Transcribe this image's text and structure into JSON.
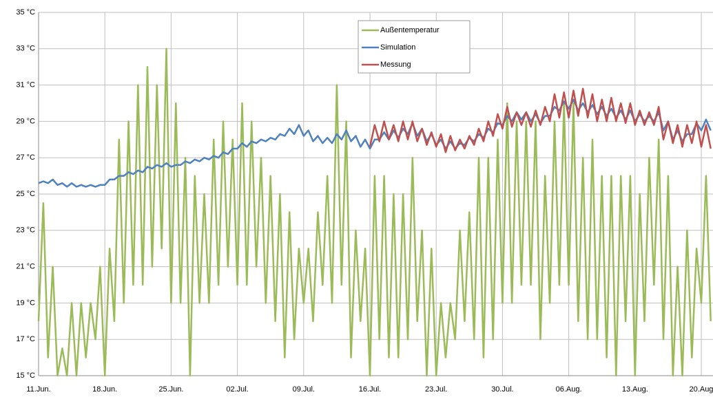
{
  "chart_data": {
    "type": "line",
    "categories": [
      "11.Jun.",
      null,
      null,
      null,
      null,
      null,
      null,
      null,
      null,
      null,
      null,
      null,
      null,
      null,
      "18.Jun.",
      null,
      null,
      null,
      null,
      null,
      null,
      null,
      null,
      null,
      null,
      null,
      null,
      null,
      "25.Jun.",
      null,
      null,
      null,
      null,
      null,
      null,
      null,
      null,
      null,
      null,
      null,
      null,
      null,
      "02.Jul.",
      null,
      null,
      null,
      null,
      null,
      null,
      null,
      null,
      null,
      null,
      null,
      null,
      null,
      "09.Jul.",
      null,
      null,
      null,
      null,
      null,
      null,
      null,
      null,
      null,
      null,
      null,
      null,
      null,
      "16.Jul.",
      null,
      null,
      null,
      null,
      null,
      null,
      null,
      null,
      null,
      null,
      null,
      null,
      null,
      "23.Jul.",
      null,
      null,
      null,
      null,
      null,
      null,
      null,
      null,
      null,
      null,
      null,
      null,
      null,
      "30.Jul.",
      null,
      null,
      null,
      null,
      null,
      null,
      null,
      null,
      null,
      null,
      null,
      null,
      null,
      "06.Aug.",
      null,
      null,
      null,
      null,
      null,
      null,
      null,
      null,
      null,
      null,
      null,
      null,
      null,
      "13.Aug.",
      null,
      null,
      null,
      null,
      null,
      null,
      null,
      null,
      null,
      null,
      null,
      null,
      null,
      "20.Aug",
      null,
      null
    ],
    "series": [
      {
        "name": "Außentemperatur",
        "color": "#9bbb59",
        "values": [
          18,
          24.5,
          16,
          21,
          15,
          16.5,
          15,
          19,
          15,
          19,
          16,
          19,
          17,
          21,
          15,
          22,
          18,
          28,
          19,
          29,
          20,
          31,
          20,
          32,
          21,
          31,
          22,
          33,
          19,
          30,
          19,
          27,
          15,
          26,
          19,
          25,
          19,
          28,
          20,
          29,
          21,
          28,
          20,
          30,
          20,
          29,
          21,
          27,
          19,
          26,
          18,
          25,
          16,
          24,
          17,
          22,
          19,
          22,
          18,
          24,
          20,
          26,
          19,
          31,
          20,
          29,
          16,
          23,
          18,
          22,
          15,
          26,
          17,
          26,
          16,
          25,
          16,
          25,
          17,
          27,
          18,
          23,
          15,
          22,
          15,
          19,
          16,
          19,
          17,
          23,
          18,
          24,
          17,
          27,
          16,
          27,
          17,
          28,
          19,
          30,
          19,
          29,
          20,
          29,
          20,
          29,
          17,
          26,
          19,
          29,
          20,
          30,
          20,
          30,
          18,
          27,
          17,
          28,
          17,
          26,
          16,
          26,
          15,
          26,
          18,
          26,
          15,
          25,
          18,
          27,
          20,
          28,
          17,
          26,
          15,
          21,
          15,
          23,
          16,
          22,
          19,
          26,
          18
        ]
      },
      {
        "name": "Simulation",
        "color": "#4f81bd",
        "values": [
          25.6,
          25.7,
          25.6,
          25.8,
          25.5,
          25.6,
          25.4,
          25.6,
          25.4,
          25.5,
          25.4,
          25.5,
          25.4,
          25.5,
          25.5,
          25.8,
          25.8,
          26.0,
          26.0,
          26.2,
          26.1,
          26.3,
          26.2,
          26.5,
          26.4,
          26.6,
          26.5,
          26.7,
          26.5,
          26.6,
          26.6,
          26.8,
          26.7,
          26.9,
          26.8,
          27.0,
          26.9,
          27.1,
          27.0,
          27.3,
          27.2,
          27.5,
          27.5,
          27.8,
          27.6,
          27.9,
          27.8,
          28.0,
          27.9,
          28.1,
          28.0,
          28.3,
          28.2,
          28.6,
          28.3,
          28.8,
          28.2,
          28.5,
          27.9,
          28.2,
          27.8,
          28.1,
          27.8,
          28.3,
          28.0,
          28.5,
          27.9,
          28.2,
          27.6,
          28.0,
          27.5,
          28.0,
          28.0,
          28.4,
          28.0,
          28.5,
          28.1,
          28.6,
          28.3,
          28.9,
          28.2,
          28.6,
          27.9,
          28.3,
          27.7,
          28.0,
          27.5,
          27.9,
          27.5,
          27.8,
          27.7,
          28.1,
          27.9,
          28.3,
          28.1,
          28.6,
          28.4,
          28.9,
          28.8,
          29.3,
          29.0,
          29.5,
          29.1,
          29.5,
          29.0,
          29.4,
          28.9,
          29.3,
          29.3,
          29.8,
          29.6,
          30.1,
          29.7,
          30.2,
          29.6,
          30.0,
          29.5,
          29.9,
          29.4,
          29.8,
          29.3,
          29.7,
          29.2,
          29.6,
          29.1,
          29.6,
          29.0,
          29.4,
          29.0,
          29.3,
          29.0,
          29.5,
          28.5,
          29.0,
          28.0,
          28.5,
          27.9,
          28.3,
          28.3,
          28.9,
          28.5,
          29.1,
          28.5
        ]
      },
      {
        "name": "Messung",
        "color": "#c0504d",
        "values": [
          null,
          null,
          null,
          null,
          null,
          null,
          null,
          null,
          null,
          null,
          null,
          null,
          null,
          null,
          null,
          null,
          null,
          null,
          null,
          null,
          null,
          null,
          null,
          null,
          null,
          null,
          null,
          null,
          null,
          null,
          null,
          null,
          null,
          null,
          null,
          null,
          null,
          null,
          null,
          null,
          null,
          null,
          null,
          null,
          null,
          null,
          null,
          null,
          null,
          null,
          null,
          null,
          null,
          null,
          null,
          null,
          null,
          null,
          null,
          null,
          null,
          null,
          null,
          null,
          null,
          null,
          null,
          null,
          null,
          null,
          27.6,
          28.8,
          27.9,
          29.0,
          28.0,
          28.8,
          27.9,
          29.0,
          28.0,
          29.0,
          27.9,
          28.6,
          27.7,
          28.4,
          27.6,
          28.3,
          27.3,
          28.2,
          27.4,
          28.0,
          27.5,
          28.2,
          27.7,
          28.6,
          27.9,
          29.0,
          28.2,
          29.4,
          28.6,
          29.8,
          28.7,
          29.5,
          28.8,
          29.5,
          28.7,
          29.6,
          28.8,
          29.8,
          29.0,
          30.5,
          29.2,
          30.6,
          29.2,
          30.7,
          29.3,
          30.8,
          29.2,
          30.5,
          29.0,
          30.2,
          29.0,
          30.3,
          29.0,
          30.0,
          28.9,
          30.0,
          28.8,
          29.6,
          28.8,
          29.5,
          28.8,
          29.8,
          28.0,
          29.0,
          27.8,
          28.8,
          27.6,
          28.8,
          27.8,
          29.0,
          27.6,
          28.8,
          27.5
        ]
      }
    ],
    "ylim": [
      15,
      35
    ],
    "yticks": [
      {
        "value": 15,
        "label": "15 °C"
      },
      {
        "value": 17,
        "label": "17 °C"
      },
      {
        "value": 19,
        "label": "19 °C"
      },
      {
        "value": 21,
        "label": "21 °C"
      },
      {
        "value": 23,
        "label": "23 °C"
      },
      {
        "value": 25,
        "label": "25 °C"
      },
      {
        "value": 27,
        "label": "27 °C"
      },
      {
        "value": 29,
        "label": "29 °C"
      },
      {
        "value": 31,
        "label": "31 °C"
      },
      {
        "value": 33,
        "label": "33 °C"
      },
      {
        "value": 35,
        "label": "35 °C"
      }
    ],
    "grid": true,
    "legend": "upper center"
  }
}
